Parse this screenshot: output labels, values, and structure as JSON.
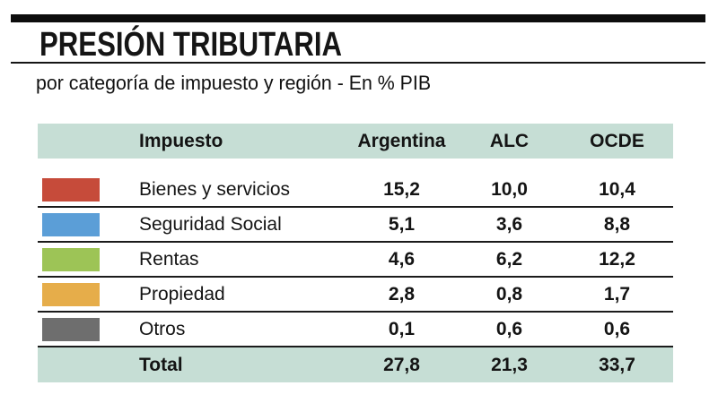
{
  "header": {
    "title": "PRESIÓN TRIBUTARIA",
    "subtitle": "por categoría de impuesto y región - En % PIB"
  },
  "colors": {
    "band_bg": "#c6ded5",
    "top_bar": "#0d0d0d",
    "row_line": "#1b1b1b"
  },
  "table": {
    "columns": [
      "Impuesto",
      "Argentina",
      "ALC",
      "OCDE"
    ],
    "rows": [
      {
        "label": "Bienes y servicios",
        "color": "#c64b3a",
        "values": [
          "15,2",
          "10,0",
          "10,4"
        ]
      },
      {
        "label": "Seguridad Social",
        "color": "#5b9ed7",
        "values": [
          "5,1",
          "3,6",
          "8,8"
        ]
      },
      {
        "label": "Rentas",
        "color": "#9dc456",
        "values": [
          "4,6",
          "6,2",
          "12,2"
        ]
      },
      {
        "label": "Propiedad",
        "color": "#e6ad4a",
        "values": [
          "2,8",
          "0,8",
          "1,7"
        ]
      },
      {
        "label": "Otros",
        "color": "#6e6e6e",
        "values": [
          "0,1",
          "0,6",
          "0,6"
        ]
      }
    ],
    "total": {
      "label": "Total",
      "values": [
        "27,8",
        "21,3",
        "33,7"
      ]
    }
  },
  "chart_data": {
    "type": "table",
    "title": "PRESIÓN TRIBUTARIA",
    "subtitle": "por categoría de impuesto y región - En % PIB",
    "unit": "% PIB",
    "columns": [
      "Impuesto",
      "Argentina",
      "ALC",
      "OCDE"
    ],
    "rows": [
      {
        "category": "Bienes y servicios",
        "Argentina": 15.2,
        "ALC": 10.0,
        "OCDE": 10.4
      },
      {
        "category": "Seguridad Social",
        "Argentina": 5.1,
        "ALC": 3.6,
        "OCDE": 8.8
      },
      {
        "category": "Rentas",
        "Argentina": 4.6,
        "ALC": 6.2,
        "OCDE": 12.2
      },
      {
        "category": "Propiedad",
        "Argentina": 2.8,
        "ALC": 0.8,
        "OCDE": 1.7
      },
      {
        "category": "Otros",
        "Argentina": 0.1,
        "ALC": 0.6,
        "OCDE": 0.6
      },
      {
        "category": "Total",
        "Argentina": 27.8,
        "ALC": 21.3,
        "OCDE": 33.7
      }
    ],
    "row_colors": [
      "#c64b3a",
      "#5b9ed7",
      "#9dc456",
      "#e6ad4a",
      "#6e6e6e"
    ],
    "legend_position": "left-swatches"
  }
}
